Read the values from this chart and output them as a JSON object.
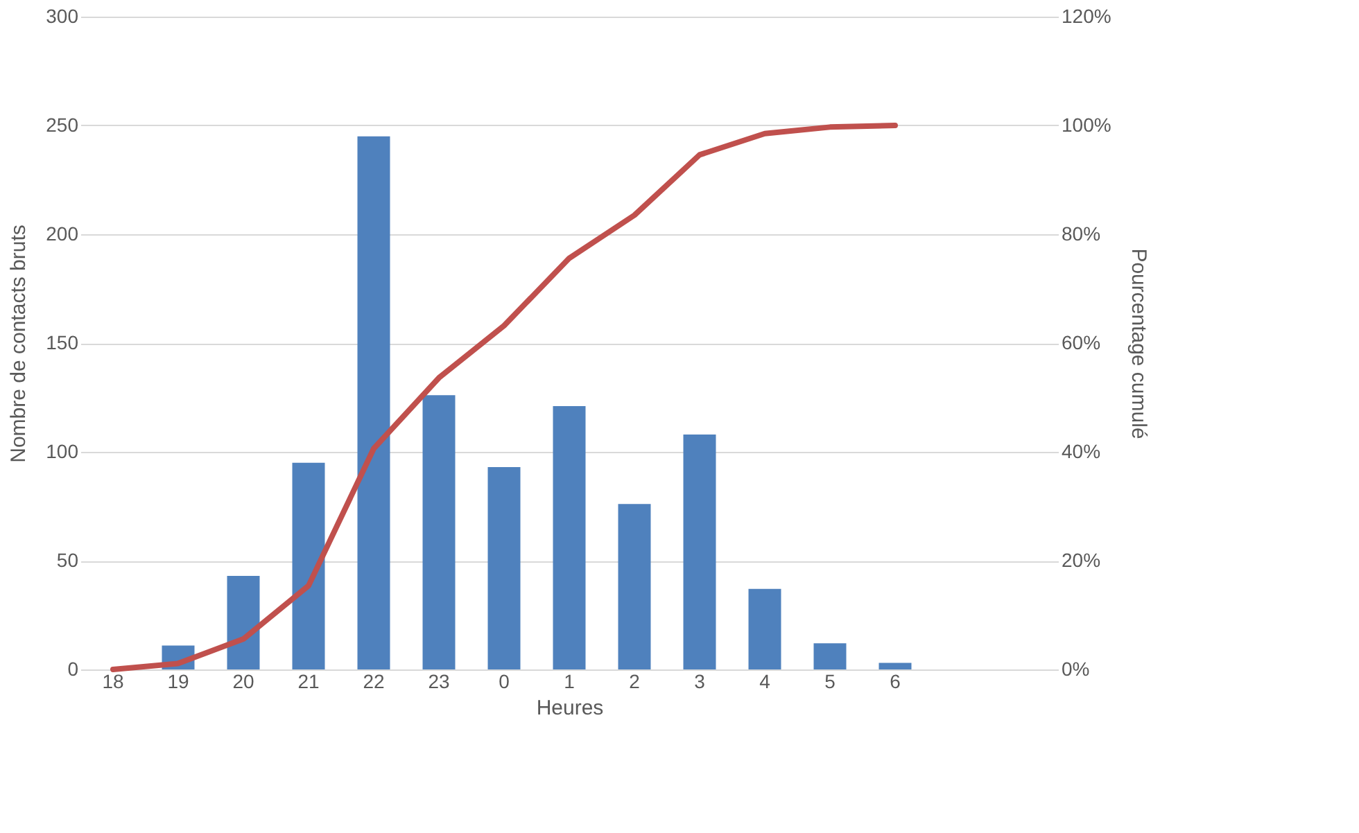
{
  "chart_data": {
    "type": "bar",
    "xlabel": "Heures",
    "ylabel": "Nombre de contacts bruts",
    "y2label": "Pourcentage cumulé",
    "categories": [
      "18",
      "19",
      "20",
      "21",
      "22",
      "23",
      "0",
      "1",
      "2",
      "3",
      "4",
      "5",
      "6",
      null,
      null
    ],
    "series": [
      {
        "color": "#4f81bd",
        "values": [
          0,
          11,
          43,
          95,
          245,
          126,
          93,
          121,
          76,
          108,
          37,
          12,
          3,
          null,
          null
        ]
      },
      {
        "type": "line",
        "axis": "y2",
        "color": "#c0504d",
        "values": [
          0,
          1.1,
          5.6,
          15.4,
          40.6,
          53.6,
          63.2,
          75.6,
          83.5,
          94.6,
          98.5,
          99.7,
          100,
          null,
          null
        ]
      }
    ],
    "ylim": [
      0,
      300
    ],
    "yticks": [
      0,
      50,
      100,
      150,
      200,
      250,
      300
    ],
    "y2lim": [
      0,
      120
    ],
    "y2ticks": [
      {
        "value": 0,
        "label": "0%"
      },
      {
        "value": 20,
        "label": "20%"
      },
      {
        "value": 40,
        "label": "40%"
      },
      {
        "value": 60,
        "label": "60%"
      },
      {
        "value": 80,
        "label": "80%"
      },
      {
        "value": 100,
        "label": "100%"
      },
      {
        "value": 120,
        "label": "120%"
      }
    ],
    "grid": "y",
    "marker": "none",
    "line_style": "solid"
  }
}
